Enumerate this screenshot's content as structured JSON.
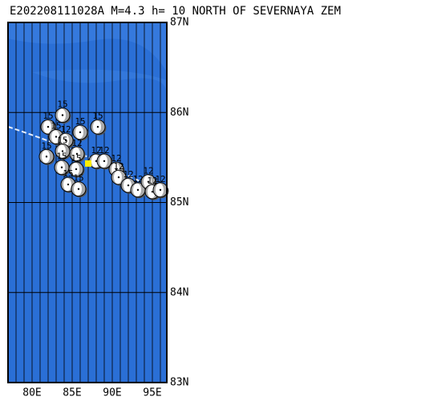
{
  "title": "E202208111028A M=4.3 h= 10 NORTH OF SEVERNAYA ZEM",
  "map": {
    "lon_range": [
      77,
      96.8
    ],
    "lat_range": [
      83,
      87
    ],
    "lat_ticks": [
      {
        "value": 87,
        "label": "87N"
      },
      {
        "value": 86,
        "label": "86N"
      },
      {
        "value": 85,
        "label": "85N"
      },
      {
        "value": 84,
        "label": "84N"
      },
      {
        "value": 83,
        "label": "83N"
      }
    ],
    "lon_ticks": [
      {
        "value": 80,
        "label": "80E"
      },
      {
        "value": 85,
        "label": "85E"
      },
      {
        "value": 90,
        "label": "90E"
      },
      {
        "value": 95,
        "label": "95E"
      }
    ],
    "events": [
      {
        "lon": 82.0,
        "lat": 85.84,
        "label": "15"
      },
      {
        "lon": 83.8,
        "lat": 85.97,
        "label": "15"
      },
      {
        "lon": 83.0,
        "lat": 85.73,
        "label": "15"
      },
      {
        "lon": 84.2,
        "lat": 85.69,
        "label": "12"
      },
      {
        "lon": 86.0,
        "lat": 85.78,
        "label": "15"
      },
      {
        "lon": 88.2,
        "lat": 85.84,
        "label": "15"
      },
      {
        "lon": 85.6,
        "lat": 85.54,
        "label": "12"
      },
      {
        "lon": 83.8,
        "lat": 85.57,
        "label": "15"
      },
      {
        "lon": 81.8,
        "lat": 85.51,
        "label": "15"
      },
      {
        "lon": 83.7,
        "lat": 85.39,
        "label": "15"
      },
      {
        "lon": 85.5,
        "lat": 85.37,
        "label": "15"
      },
      {
        "lon": 84.5,
        "lat": 85.2,
        "label": "15"
      },
      {
        "lon": 85.8,
        "lat": 85.15,
        "label": "15"
      },
      {
        "lon": 88.0,
        "lat": 85.46,
        "label": "12"
      },
      {
        "lon": 89.0,
        "lat": 85.46,
        "label": "12"
      },
      {
        "lon": 90.5,
        "lat": 85.37,
        "label": "12"
      },
      {
        "lon": 90.8,
        "lat": 85.28,
        "label": "12"
      },
      {
        "lon": 92.0,
        "lat": 85.19,
        "label": "12"
      },
      {
        "lon": 93.2,
        "lat": 85.14,
        "label": "12"
      },
      {
        "lon": 94.5,
        "lat": 85.23,
        "label": "12"
      },
      {
        "lon": 95.0,
        "lat": 85.12,
        "label": "12"
      },
      {
        "lon": 96.0,
        "lat": 85.14,
        "label": "12"
      }
    ]
  }
}
